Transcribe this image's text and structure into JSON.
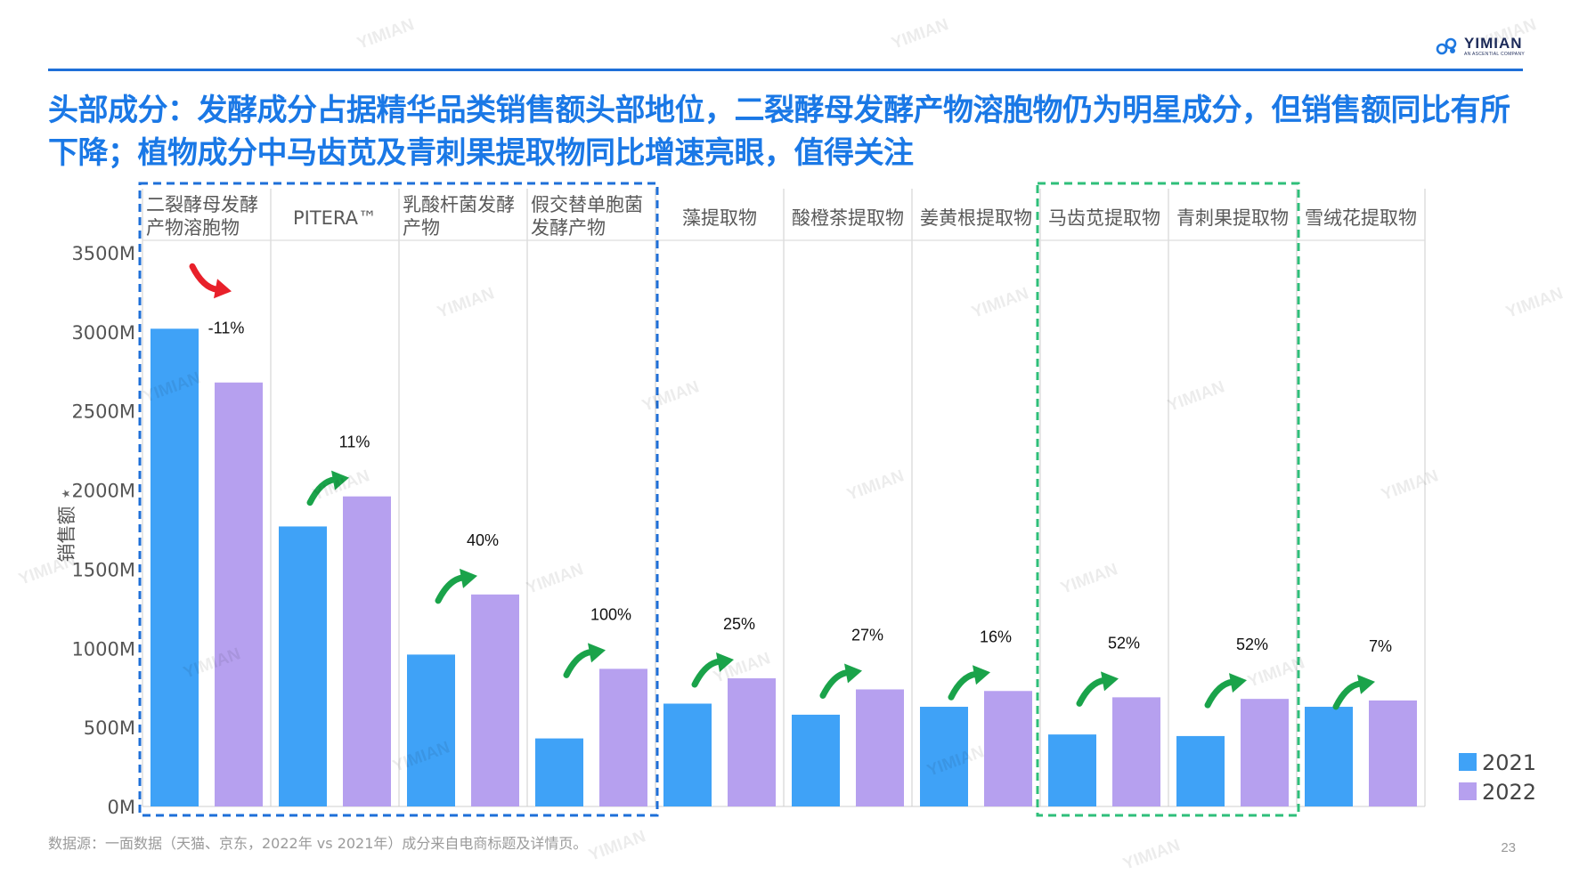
{
  "logo": {
    "name": "YIMIAN",
    "sub": "AN ASCENTIAL COMPANY"
  },
  "title": "头部成分：发酵成分占据精华品类销售额头部地位，二裂酵母发酵产物溶胞物仍为明星成分，但销售额同比有所下降；植物成分中马齿苋及青刺果提取物同比增速亮眼，值得关注",
  "chart_data": {
    "type": "bar",
    "ylabel": "销售额",
    "ylim": [
      0,
      3500
    ],
    "yticks": [
      "0M",
      "500M",
      "1000M",
      "1500M",
      "2000M",
      "2500M",
      "3000M",
      "3500M"
    ],
    "categories": [
      [
        "二裂酵母发酵",
        "产物溶胞物"
      ],
      [
        "PITERA™"
      ],
      [
        "乳酸杆菌发酵",
        "产物"
      ],
      [
        "假交替单胞菌",
        "发酵产物"
      ],
      [
        "藻提取物"
      ],
      [
        "酸橙茶提取物"
      ],
      [
        "姜黄根提取物"
      ],
      [
        "马齿苋提取物"
      ],
      [
        "青刺果提取物"
      ],
      [
        "雪绒花提取物"
      ]
    ],
    "series": [
      {
        "name": "2021",
        "color": "#3fa2f7",
        "values": [
          3020,
          1770,
          960,
          430,
          650,
          580,
          630,
          455,
          445,
          630
        ]
      },
      {
        "name": "2022",
        "color": "#b6a0ef",
        "values": [
          2680,
          1960,
          1340,
          870,
          810,
          740,
          730,
          690,
          680,
          670
        ]
      }
    ],
    "growth_labels": [
      "-11%",
      "11%",
      "40%",
      "100%",
      "25%",
      "27%",
      "16%",
      "52%",
      "52%",
      "7%"
    ],
    "growth_direction": [
      "down",
      "up",
      "up",
      "up",
      "up",
      "up",
      "up",
      "up",
      "up",
      "up"
    ],
    "highlight_groups": [
      {
        "from": 0,
        "to": 3,
        "color": "#1e6fd8"
      },
      {
        "from": 7,
        "to": 8,
        "color": "#2fbf7a"
      }
    ],
    "legend": "bottom-right",
    "grid": false
  },
  "source": "数据源：一面数据（天猫、京东，2022年 vs 2021年）成分来自电商标题及详情页。",
  "page_number": "23",
  "watermark": "YIMIAN",
  "colors": {
    "title": "#1a78e6",
    "rule": "#1e6fd8",
    "up_arrow": "#1aa34a",
    "down_arrow": "#e8202a"
  }
}
